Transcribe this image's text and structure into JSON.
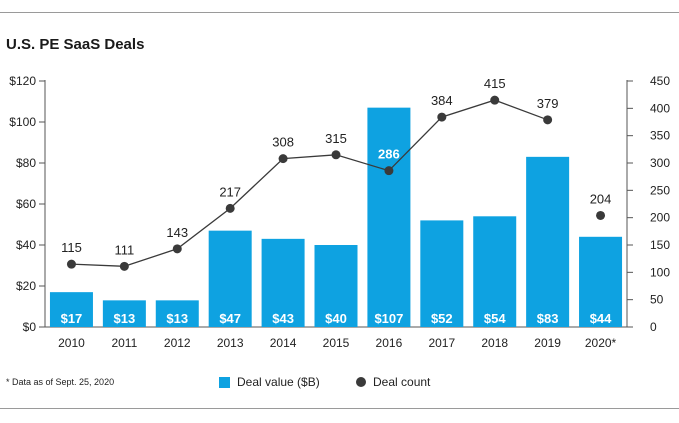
{
  "title": "U.S. PE SaaS Deals",
  "footnote": "* Data as of Sept. 25, 2020",
  "legend": {
    "bar_label": "Deal value ($B)",
    "dot_label": "Deal count"
  },
  "colors": {
    "bar": "#0ea2e1",
    "dot": "#3a3a3a",
    "line": "#3a3a3a",
    "axis": "#555555"
  },
  "chart_data": {
    "type": "bar",
    "title": "U.S. PE SaaS Deals",
    "categories": [
      "2010",
      "2011",
      "2012",
      "2013",
      "2014",
      "2015",
      "2016",
      "2017",
      "2018",
      "2019",
      "2020*"
    ],
    "series": [
      {
        "name": "Deal value ($B)",
        "type": "bar",
        "axis": "left",
        "values": [
          17,
          13,
          13,
          47,
          43,
          40,
          107,
          52,
          54,
          83,
          44
        ],
        "labels": [
          "$17",
          "$13",
          "$13",
          "$47",
          "$43",
          "$40",
          "$107",
          "$52",
          "$54",
          "$83",
          "$44"
        ]
      },
      {
        "name": "Deal count",
        "type": "line",
        "axis": "right",
        "values": [
          115,
          111,
          143,
          217,
          308,
          315,
          286,
          384,
          415,
          379,
          204
        ],
        "labels": [
          "115",
          "111",
          "143",
          "217",
          "308",
          "315",
          "286",
          "384",
          "415",
          "379",
          "204"
        ],
        "connected_through": "2019"
      }
    ],
    "y_left": {
      "ylim": [
        0,
        120
      ],
      "ticks": [
        0,
        20,
        40,
        60,
        80,
        100,
        120
      ],
      "tick_labels": [
        "$0",
        "$20",
        "$40",
        "$60",
        "$80",
        "$100",
        "$120"
      ]
    },
    "y_right": {
      "ylim": [
        0,
        450
      ],
      "ticks": [
        0,
        50,
        100,
        150,
        200,
        250,
        300,
        350,
        400,
        450
      ],
      "tick_labels": [
        "0",
        "50",
        "100",
        "150",
        "200",
        "250",
        "300",
        "350",
        "400",
        "450"
      ]
    },
    "xlabel": "",
    "ylabel": "",
    "grid": false,
    "legend_position": "bottom"
  }
}
